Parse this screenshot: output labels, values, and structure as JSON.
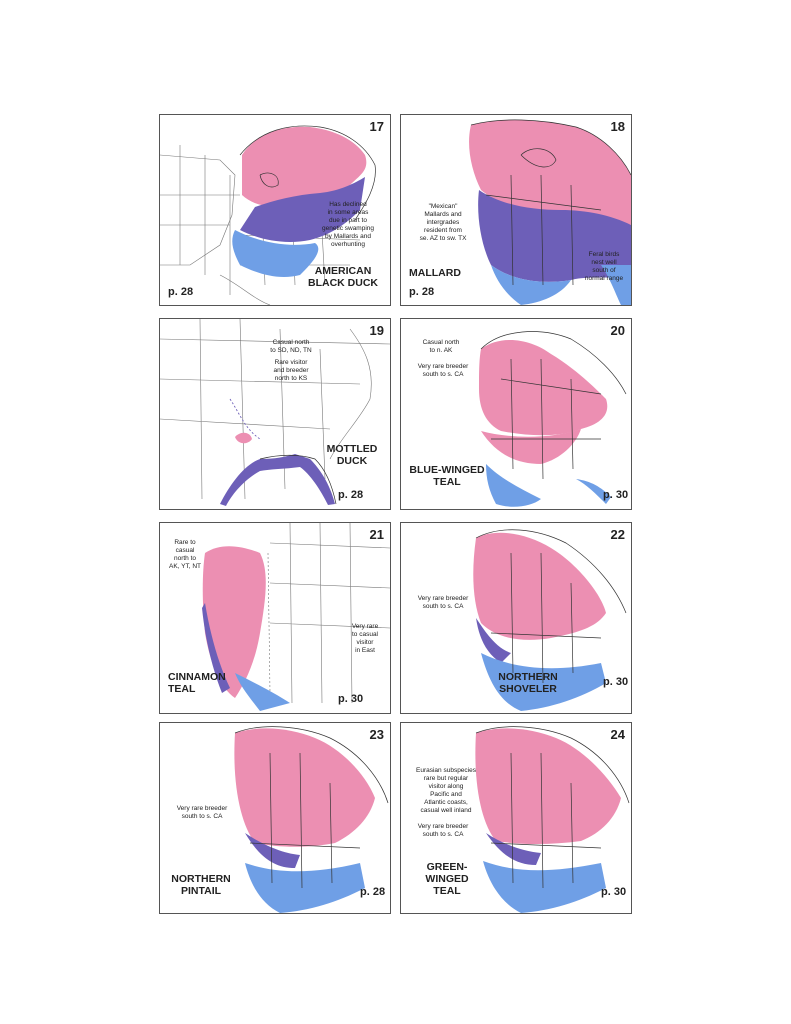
{
  "colors": {
    "breeding": "#ec8fb2",
    "wintering": "#6f9fe6",
    "resident": "#6d5fb8",
    "outline": "#555555"
  },
  "maps": [
    {
      "number": "17",
      "species": "AMERICAN\nBLACK DUCK",
      "page": "p. 28",
      "notes": [
        "Has declined\nin some areas\ndue in part to\ngenetic swamping\nby Mallards and\noverhunting"
      ]
    },
    {
      "number": "18",
      "species": "MALLARD",
      "page": "p. 28",
      "notes": [
        "\"Mexican\"\nMallards and\nintergrades\nresident from\nse. AZ to sw. TX",
        "Feral birds\nnest well\nsouth of\nnormal range"
      ]
    },
    {
      "number": "19",
      "species": "MOTTLED\nDUCK",
      "page": "p. 28",
      "notes": [
        "Casual north\nto SD, ND, TN",
        "Rare visitor\nand breeder\nnorth to KS"
      ]
    },
    {
      "number": "20",
      "species": "BLUE-WINGED\nTEAL",
      "page": "p. 30",
      "notes": [
        "Casual north\nto n. AK",
        "Very rare breeder\nsouth to s. CA"
      ]
    },
    {
      "number": "21",
      "species": "CINNAMON\nTEAL",
      "page": "p. 30",
      "notes": [
        "Rare to\ncasual\nnorth to\nAK, YT, NT",
        "Very rare\nto casual\nvisitor\nin East"
      ]
    },
    {
      "number": "22",
      "species": "NORTHERN\nSHOVELER",
      "page": "p. 30",
      "notes": [
        "Very rare breeder\nsouth to s. CA"
      ]
    },
    {
      "number": "23",
      "species": "NORTHERN\nPINTAIL",
      "page": "p. 28",
      "notes": [
        "Very rare breeder\nsouth to s. CA"
      ]
    },
    {
      "number": "24",
      "species": "GREEN-WINGED\nTEAL",
      "page": "p. 30",
      "notes": [
        "Eurasian subspecies\nrare but regular\nvisitor along\nPacific and\nAtlantic coasts,\ncasual well inland",
        "Very rare breeder\nsouth to s. CA"
      ]
    }
  ]
}
